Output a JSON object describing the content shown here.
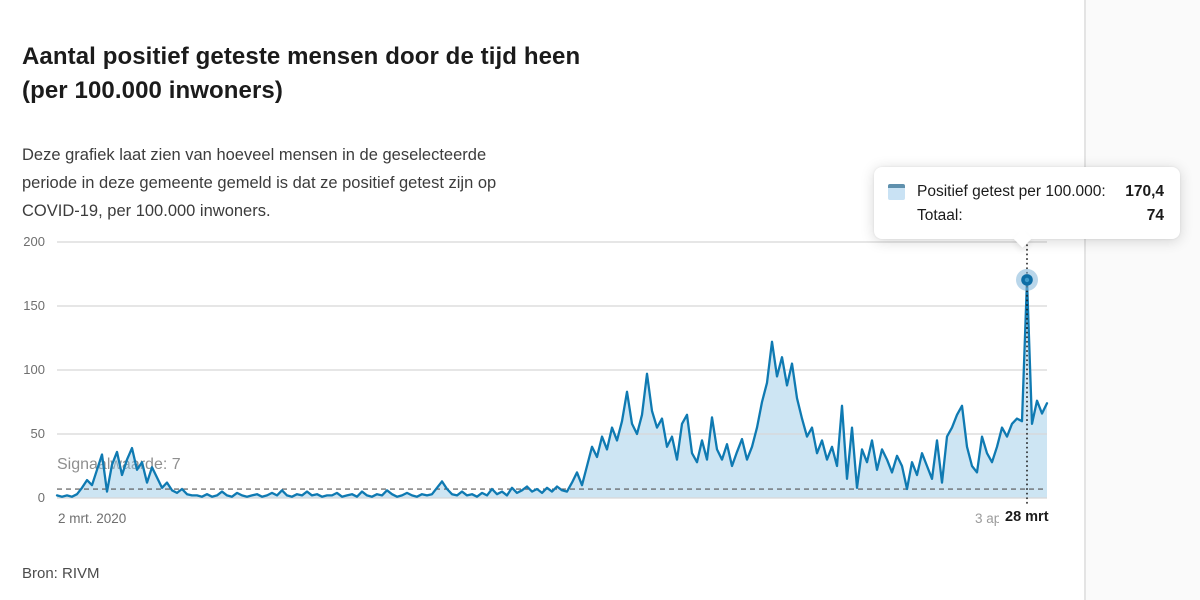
{
  "header": {
    "title": "Aantal positief geteste mensen door de tijd heen (per 100.000 inwoners)",
    "description": "Deze grafiek laat zien van hoeveel mensen in de geselecteerde periode in deze gemeente gemeld is dat ze positief getest zijn op COVID-19, per 100.000 inwoners."
  },
  "tooltip": {
    "metric_label": "Positief getest per 100.000:",
    "metric_value": "170,4",
    "total_label": "Totaal:",
    "total_value": "74",
    "swatch_fill": "#c9e2f4",
    "swatch_border": "#5f90ad"
  },
  "source": "Bron: RIVM",
  "chart_data": {
    "type": "area",
    "title": "Aantal positief geteste mensen door de tijd heen (per 100.000 inwoners)",
    "xlabel": "",
    "ylabel": "",
    "x_start_label": "2 mrt. 2020",
    "x_end_label": "3 ap",
    "selected_x_label": "28 mrt",
    "y_ticks": [
      0,
      50,
      100,
      150,
      200
    ],
    "ylim": [
      0,
      200
    ],
    "grid": true,
    "signal_label": "Signaalwaarde: 7",
    "signal_value": 7,
    "selected_index": 194,
    "selected_value": 170.4,
    "selected_total": 74,
    "line_color": "#0f7ab2",
    "fill_color": "rgba(144,197,229,0.45)",
    "grid_color": "#d8d8d8",
    "cursor_color": "#1a1a1a",
    "signal_line_color": "#555555",
    "series": [
      {
        "name": "Positief getest per 100.000",
        "values": [
          2,
          1,
          2,
          1,
          3,
          8,
          14,
          10,
          22,
          34,
          5,
          26,
          36,
          18,
          30,
          39,
          22,
          28,
          12,
          24,
          16,
          8,
          12,
          6,
          4,
          7,
          3,
          2,
          2,
          1,
          3,
          1,
          2,
          5,
          2,
          1,
          4,
          2,
          1,
          2,
          3,
          1,
          2,
          4,
          2,
          6,
          2,
          1,
          3,
          2,
          5,
          2,
          3,
          1,
          2,
          2,
          4,
          1,
          2,
          3,
          1,
          5,
          2,
          1,
          3,
          2,
          6,
          3,
          1,
          2,
          4,
          2,
          1,
          3,
          2,
          3,
          8,
          13,
          7,
          3,
          2,
          5,
          2,
          3,
          1,
          4,
          2,
          7,
          3,
          5,
          2,
          8,
          4,
          6,
          9,
          5,
          7,
          4,
          8,
          5,
          9,
          6,
          5,
          12,
          20,
          10,
          25,
          40,
          32,
          48,
          38,
          55,
          45,
          60,
          83,
          58,
          50,
          65,
          97,
          68,
          55,
          62,
          40,
          48,
          30,
          58,
          65,
          35,
          28,
          45,
          30,
          63,
          38,
          30,
          42,
          25,
          36,
          46,
          30,
          40,
          55,
          75,
          90,
          122,
          95,
          110,
          88,
          105,
          78,
          62,
          48,
          55,
          35,
          45,
          30,
          40,
          25,
          72,
          15,
          55,
          8,
          38,
          28,
          45,
          22,
          38,
          30,
          20,
          33,
          25,
          7,
          28,
          18,
          35,
          25,
          15,
          45,
          12,
          48,
          55,
          65,
          72,
          40,
          25,
          20,
          48,
          35,
          28,
          40,
          55,
          48,
          58,
          62,
          60,
          170.4,
          58,
          76,
          66,
          74
        ]
      }
    ]
  }
}
